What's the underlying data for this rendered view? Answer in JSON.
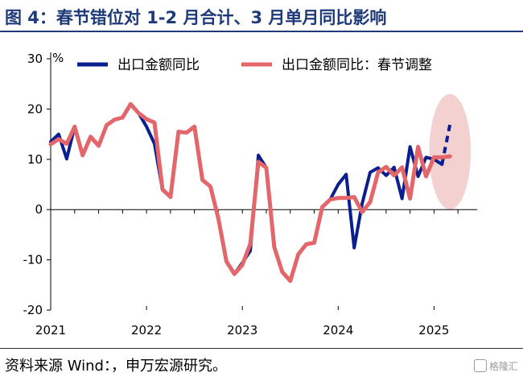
{
  "header": {
    "title": "图 4：春节错位对 1-2 月合计、3 月单月同比影响"
  },
  "footer": {
    "source": "资料来源 Wind：，申万宏源研究。",
    "watermark": "格隆汇"
  },
  "chart_data": {
    "type": "line",
    "ylabel": "%",
    "ylim": [
      -20,
      30
    ],
    "yticks": [
      30,
      20,
      10,
      0,
      -10,
      -20
    ],
    "xlim": [
      2021.0,
      2025.45
    ],
    "xticks": [
      "2021",
      "2022",
      "2023",
      "2024",
      "2025"
    ],
    "legend_position": "top",
    "colors": {
      "export": "#0a1f8f",
      "adjusted": "#e3666a",
      "highlight": "#f2c9c9"
    },
    "series": [
      {
        "name": "出口金额同比",
        "x": [
          "2021-01",
          "2021-02",
          "2021-03",
          "2021-04",
          "2021-05",
          "2021-06",
          "2021-07",
          "2021-08",
          "2021-09",
          "2021-10",
          "2021-11",
          "2021-12",
          "2022-01",
          "2022-02",
          "2022-03",
          "2022-04",
          "2022-05",
          "2022-06",
          "2022-07",
          "2022-08",
          "2022-09",
          "2022-10",
          "2022-11",
          "2022-12",
          "2023-01",
          "2023-02",
          "2023-03",
          "2023-04",
          "2023-05",
          "2023-06",
          "2023-07",
          "2023-08",
          "2023-09",
          "2023-10",
          "2023-11",
          "2023-12",
          "2024-01",
          "2024-02",
          "2024-03",
          "2024-04",
          "2024-05",
          "2024-06",
          "2024-07",
          "2024-08",
          "2024-09",
          "2024-10",
          "2024-11",
          "2024-12",
          "2025-01",
          "2025-02"
        ],
        "values": [
          13.5,
          15.0,
          10.1,
          16.5,
          10.8,
          14.5,
          12.7,
          16.8,
          17.9,
          18.3,
          21.0,
          19.2,
          16.5,
          13.1,
          3.9,
          2.5,
          15.5,
          15.3,
          16.5,
          5.9,
          4.6,
          -1.8,
          -10.3,
          -12.8,
          -10.6,
          -8.2,
          10.8,
          8.3,
          -7.5,
          -12.4,
          -14.2,
          -8.9,
          -6.9,
          -6.6,
          0.5,
          2.0,
          5.0,
          7.0,
          -7.6,
          1.2,
          7.4,
          8.3,
          6.8,
          8.4,
          2.2,
          12.5,
          6.6,
          10.4,
          10.0,
          9.0
        ],
        "dash_from": "2025-01"
      },
      {
        "name": "出口金额同比：春节调整",
        "x": [
          "2021-01",
          "2021-02",
          "2021-03",
          "2021-04",
          "2021-05",
          "2021-06",
          "2021-07",
          "2021-08",
          "2021-09",
          "2021-10",
          "2021-11",
          "2021-12",
          "2022-01",
          "2022-02",
          "2022-03",
          "2022-04",
          "2022-05",
          "2022-06",
          "2022-07",
          "2022-08",
          "2022-09",
          "2022-10",
          "2022-11",
          "2022-12",
          "2023-01",
          "2023-02",
          "2023-03",
          "2023-04",
          "2023-05",
          "2023-06",
          "2023-07",
          "2023-08",
          "2023-09",
          "2023-10",
          "2023-11",
          "2023-12",
          "2024-01",
          "2024-02",
          "2024-03",
          "2024-04",
          "2024-05",
          "2024-06",
          "2024-07",
          "2024-08",
          "2024-09",
          "2024-10",
          "2024-11",
          "2024-12",
          "2025-01",
          "2025-02",
          "2025-03"
        ],
        "values": [
          13.0,
          14.0,
          13.1,
          16.5,
          10.8,
          14.5,
          12.7,
          16.8,
          17.9,
          18.3,
          21.0,
          19.2,
          18.0,
          17.3,
          4.0,
          2.5,
          15.5,
          15.3,
          16.5,
          5.9,
          4.6,
          -1.8,
          -10.3,
          -12.8,
          -11.0,
          -6.8,
          9.5,
          8.3,
          -7.5,
          -12.4,
          -14.2,
          -8.9,
          -6.9,
          -6.6,
          0.5,
          2.0,
          2.3,
          2.3,
          2.5,
          -0.5,
          1.5,
          7.4,
          8.5,
          6.8,
          8.4,
          2.2,
          12.5,
          6.6,
          10.4,
          10.4,
          10.6
        ]
      },
      {
        "name": "",
        "x": [
          "2025-02",
          "2025-03"
        ],
        "values": [
          9.0,
          17.0
        ],
        "dashed": true,
        "color_key": "export"
      }
    ],
    "highlight_ellipse": {
      "center": [
        "2025-03",
        11.5
      ],
      "rx_months": 2.6,
      "ry": 11.5
    }
  }
}
